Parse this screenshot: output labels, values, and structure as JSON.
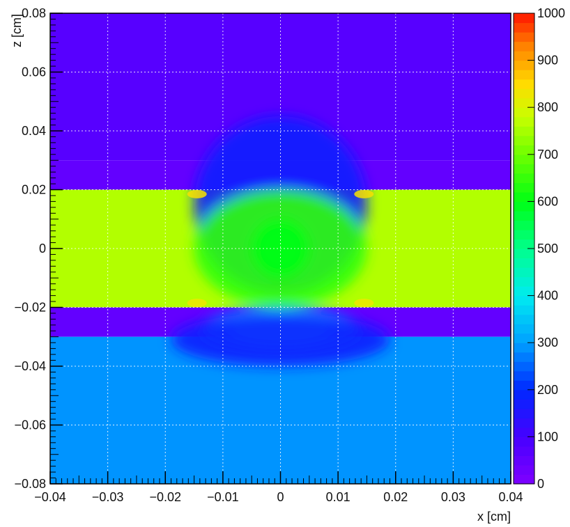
{
  "chart_data": {
    "type": "heatmap",
    "title": "",
    "xlabel": "x [cm]",
    "ylabel": "z [cm]",
    "xlim": [
      -0.04,
      0.04
    ],
    "ylim": [
      -0.08,
      0.08
    ],
    "x_ticks": [
      "−0.04",
      "−0.03",
      "−0.02",
      "−0.01",
      "0",
      "0.01",
      "0.02",
      "0.03",
      "0.04"
    ],
    "y_ticks": [
      "−0.08",
      "−0.06",
      "−0.04",
      "−0.02",
      "0",
      "0.02",
      "0.04",
      "0.06",
      "0.08"
    ],
    "x_tick_values": [
      -0.04,
      -0.03,
      -0.02,
      -0.01,
      0,
      0.01,
      0.02,
      0.03,
      0.04
    ],
    "y_tick_values": [
      -0.08,
      -0.06,
      -0.04,
      -0.02,
      0,
      0.02,
      0.04,
      0.06,
      0.08
    ],
    "grid": true,
    "colorbar": {
      "position": "right",
      "range": [
        0,
        1000
      ],
      "tick_values": [
        0,
        100,
        200,
        300,
        400,
        500,
        600,
        700,
        800,
        900,
        1000
      ],
      "tick_labels": [
        "0",
        "100",
        "200",
        "300",
        "400",
        "500",
        "600",
        "700",
        "800",
        "900",
        "1000"
      ]
    },
    "regions": [
      {
        "name": "top",
        "x": [
          -0.04,
          0.04
        ],
        "z": [
          0.03,
          0.08
        ],
        "value": 70
      },
      {
        "name": "upper-interlayer",
        "x": [
          -0.04,
          0.04
        ],
        "z": [
          0.02,
          0.03
        ],
        "value": 50
      },
      {
        "name": "central-layer",
        "x": [
          -0.04,
          0.04
        ],
        "z": [
          -0.02,
          0.02
        ],
        "value": 760
      },
      {
        "name": "lower-interlayer",
        "x": [
          -0.04,
          0.04
        ],
        "z": [
          -0.03,
          -0.02
        ],
        "value": 50
      },
      {
        "name": "bottom",
        "x": [
          -0.04,
          0.04
        ],
        "z": [
          -0.08,
          -0.03
        ],
        "value": 290
      }
    ],
    "features": [
      {
        "name": "upper-center-dip",
        "x": [
          -0.015,
          0.015
        ],
        "z": [
          -0.015,
          0.045
        ],
        "value": 180
      },
      {
        "name": "central-x-valley",
        "x": [
          -0.015,
          0.015
        ],
        "z": [
          -0.02,
          0.02
        ],
        "value": 640
      },
      {
        "name": "center-axis",
        "x": [
          -0.005,
          0.005
        ],
        "z": [
          -0.01,
          0.01
        ],
        "value": 600
      },
      {
        "name": "lower-center-bump",
        "x": [
          -0.014,
          0.014
        ],
        "z": [
          -0.035,
          -0.02
        ],
        "value": 300
      },
      {
        "name": "lower-center-core",
        "x": [
          -0.009,
          0.009
        ],
        "z": [
          -0.033,
          -0.022
        ],
        "value": 380
      },
      {
        "name": "lower-flank-dip",
        "x": [
          -0.019,
          0.019
        ],
        "z": [
          -0.04,
          -0.022
        ],
        "value": 180
      }
    ],
    "hotspots": [
      {
        "x": -0.0145,
        "z": 0.0185,
        "value": 840
      },
      {
        "x": 0.0145,
        "z": 0.0185,
        "value": 840
      },
      {
        "x": -0.0145,
        "z": -0.0185,
        "value": 830
      },
      {
        "x": 0.0145,
        "z": -0.0185,
        "value": 830
      }
    ]
  }
}
